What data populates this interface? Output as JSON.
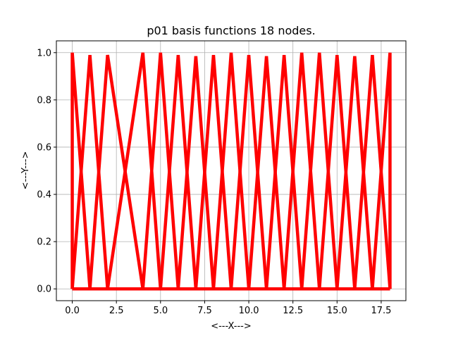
{
  "chart_data": {
    "type": "line",
    "title": "p01 basis functions 18 nodes.",
    "xlabel": "<---X--->",
    "ylabel": "<---Y--->",
    "xlim": [
      -0.9,
      18.9
    ],
    "ylim": [
      -0.05,
      1.05
    ],
    "grid": true,
    "legend": "none",
    "line_color": "#ff0000",
    "x_ticks": [
      0.0,
      2.5,
      5.0,
      7.5,
      10.0,
      12.5,
      15.0,
      17.5
    ],
    "x_tick_labels": [
      "0.0",
      "2.5",
      "5.0",
      "7.5",
      "10.0",
      "12.5",
      "15.0",
      "17.5"
    ],
    "y_ticks": [
      0.0,
      0.2,
      0.4,
      0.6,
      0.8,
      1.0
    ],
    "y_tick_labels": [
      "0.0",
      "0.2",
      "0.4",
      "0.6",
      "0.8",
      "1.0"
    ],
    "nodes": [
      0,
      1,
      2,
      4,
      5,
      6,
      7,
      8,
      9,
      10,
      11,
      12,
      13,
      14,
      15,
      16,
      17,
      18
    ],
    "node_peaks": [
      1.0,
      0.99,
      0.99,
      1.0,
      1.0,
      0.99,
      0.985,
      0.99,
      1.0,
      0.99,
      0.985,
      0.99,
      1.0,
      1.0,
      0.99,
      0.985,
      0.99,
      1.0
    ]
  }
}
